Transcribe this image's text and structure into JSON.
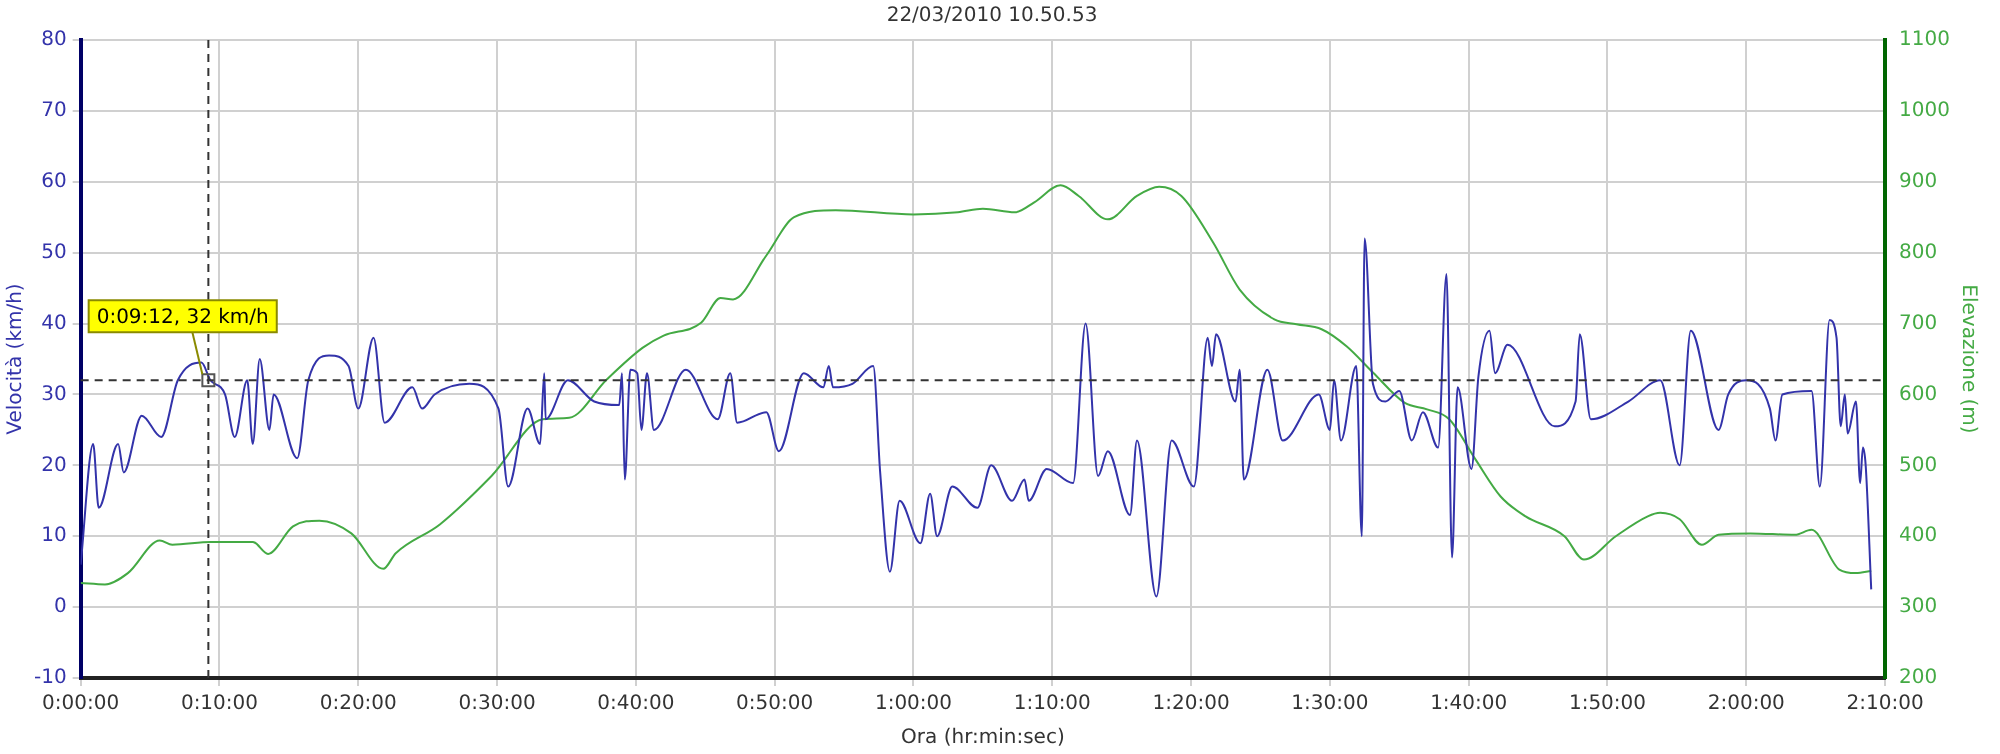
{
  "chart_data": {
    "type": "line",
    "title": "22/03/2010 10.50.53",
    "xlabel": "Ora (hr:min:sec)",
    "ylabel": "Velocità (km/h)",
    "y2label": "Elevazione (m)",
    "xlim": [
      0,
      130
    ],
    "xticks": [
      {
        "value": 0,
        "label": "0:00:00"
      },
      {
        "value": 10,
        "label": "0:10:00"
      },
      {
        "value": 20,
        "label": "0:20:00"
      },
      {
        "value": 30,
        "label": "0:30:00"
      },
      {
        "value": 40,
        "label": "0:40:00"
      },
      {
        "value": 50,
        "label": "0:50:00"
      },
      {
        "value": 60,
        "label": "1:00:00"
      },
      {
        "value": 70,
        "label": "1:10:00"
      },
      {
        "value": 80,
        "label": "1:20:00"
      },
      {
        "value": 90,
        "label": "1:30:00"
      },
      {
        "value": 100,
        "label": "1:40:00"
      },
      {
        "value": 110,
        "label": "1:50:00"
      },
      {
        "value": 120,
        "label": "2:00:00"
      },
      {
        "value": 130,
        "label": "2:10:00"
      }
    ],
    "ylim": [
      -10,
      80
    ],
    "yticks": [
      -10,
      0,
      10,
      20,
      30,
      40,
      50,
      60,
      70,
      80
    ],
    "y2lim": [
      200,
      1100
    ],
    "y2ticks": [
      200,
      300,
      400,
      500,
      600,
      700,
      800,
      900,
      1000,
      1100
    ],
    "grid": true,
    "legend": false,
    "marker": "none",
    "line_style": "solid",
    "series": [
      {
        "color": "#3333aa",
        "x": [
          0,
          0.9,
          1.3,
          2.7,
          3.1,
          4.4,
          5.8,
          7.0,
          8.7,
          9.35,
          10.4,
          11.1,
          12.0,
          12.4,
          12.9,
          13.6,
          13.9,
          15.6,
          16.4,
          17.9,
          19.3,
          20.0,
          21.1,
          21.9,
          23.9,
          24.6,
          25.5,
          28.0,
          30.1,
          30.8,
          32.2,
          33.1,
          33.4,
          33.5,
          35.1,
          37,
          38.8,
          39,
          39.2,
          39.6,
          40.1,
          40.4,
          40.8,
          41.3,
          43.6,
          45.9,
          46.8,
          47.3,
          49.4,
          50.3,
          52.1,
          53.5,
          53.9,
          54.2,
          55.6,
          57.1,
          57.6,
          58.3,
          59.0,
          60.5,
          61.2,
          61.7,
          62.8,
          64.6,
          65.6,
          67.1,
          68,
          68.3,
          69.6,
          71.5,
          72.4,
          73.3,
          74.0,
          75.6,
          76.1,
          77.5,
          78.6,
          80.2,
          81.2,
          81.5,
          81.8,
          83.2,
          83.5,
          83.8,
          85.5,
          86.6,
          89.2,
          90,
          90.3,
          90.8,
          91.9,
          92.3,
          92.5,
          93.1,
          94.0,
          95,
          95.9,
          96.7,
          97.8,
          98.4,
          98.8,
          99.2,
          100.2,
          100.7,
          101.5,
          101.9,
          102.8,
          106.2,
          107.7,
          108,
          108.8,
          111.5,
          113.8,
          115.2,
          116,
          118,
          118.7,
          120,
          121.7,
          122.1,
          122.6,
          124.7,
          125.3,
          126,
          126.5,
          126.8,
          127.1,
          127.3,
          127.9,
          128.2,
          128.4,
          128.6,
          129
        ],
        "values": [
          6,
          23,
          14,
          23,
          19,
          27,
          24,
          32,
          34.5,
          32,
          30,
          24,
          32,
          23,
          35,
          25,
          30,
          21,
          32,
          35.5,
          34,
          28,
          38,
          26,
          31,
          28,
          30,
          31.5,
          28,
          17,
          28,
          23,
          33,
          26.5,
          32,
          29,
          28.5,
          33,
          18,
          33.5,
          33,
          25,
          33,
          25,
          33.5,
          26.5,
          33,
          26,
          27.5,
          22,
          33,
          31,
          34,
          31,
          31.5,
          34,
          19,
          5,
          15,
          9,
          16,
          10,
          17,
          14,
          20,
          15,
          18,
          15,
          19.5,
          17.5,
          40,
          18.5,
          22,
          13,
          23.5,
          1.5,
          23.5,
          17,
          38,
          34,
          38.5,
          29,
          33.5,
          18,
          33.5,
          23.5,
          30,
          25,
          32,
          23.5,
          34,
          10,
          52,
          31.5,
          29,
          30.5,
          23.5,
          27.5,
          22.5,
          47,
          7,
          31,
          19.5,
          32.5,
          39,
          33,
          37,
          25.5,
          29,
          38.5,
          26.5,
          29,
          32,
          20,
          39,
          25,
          30,
          32,
          28,
          23.5,
          30,
          30.5,
          17,
          40.5,
          38,
          25.5,
          30,
          24.5,
          29,
          17.5,
          22.5,
          20,
          2.5
        ]
      },
      {
        "color": "#44aa44",
        "axis": "y2",
        "x": [
          0,
          1.75,
          3.4,
          5.7,
          6.6,
          9.4,
          12.4,
          13.5,
          15.3,
          17.2,
          19.5,
          21.8,
          22.7,
          25.9,
          29.6,
          33.3,
          35.2,
          37.9,
          40.5,
          42,
          44.7,
          46.1,
          47,
          49.4,
          51.4,
          54.4,
          60,
          63.2,
          65,
          67.3,
          68.7,
          70.6,
          71.9,
          74,
          76.1,
          77.7,
          79.3,
          81.6,
          83.5,
          86,
          87.6,
          89.4,
          91.2,
          93.1,
          95.4,
          97,
          98.6,
          100.5,
          102.3,
          104.1,
          106.9,
          108.3,
          110.6,
          112.9,
          113.8,
          115.2,
          116.8,
          118,
          120.3,
          123.5,
          124.7,
          126.7,
          127.9,
          129
        ],
        "values": [
          334,
          332,
          348,
          394,
          388,
          392,
          392,
          375,
          414,
          422,
          404,
          354,
          376,
          417,
          485,
          565,
          567,
          621,
          666,
          683,
          701,
          736,
          734,
          796,
          850,
          860,
          854,
          857,
          862,
          857,
          871,
          895,
          880,
          847,
          880,
          893,
          880,
          814,
          748,
          706,
          699,
          692,
          668,
          631,
          588,
          579,
          565,
          508,
          456,
          428,
          400,
          367,
          400,
          428,
          433,
          424,
          388,
          402,
          404,
          402,
          409,
          353,
          348,
          351
        ]
      }
    ],
    "ref_lines": [
      {
        "axis": "x",
        "value": 9.2,
        "line_style": "dashed"
      },
      {
        "axis": "y",
        "value": 32,
        "line_style": "dashed"
      }
    ],
    "annotations": [
      {
        "text": "0:09:12, 32 km/h",
        "x": 9.2,
        "y": 32
      }
    ]
  }
}
